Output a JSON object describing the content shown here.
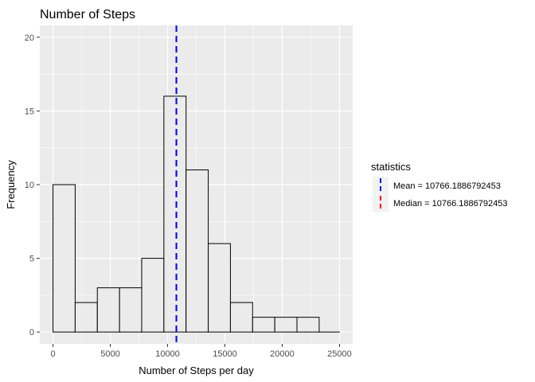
{
  "chart_data": {
    "type": "bar",
    "subtype": "histogram",
    "title": "Number of Steps",
    "xlabel": "Number of Steps per day",
    "ylabel": "Frequency",
    "xlim": [
      -1150,
      26150
    ],
    "ylim": [
      -0.8,
      20.8
    ],
    "x_ticks": [
      0,
      5000,
      10000,
      15000,
      20000,
      25000
    ],
    "x_tick_labels": [
      "0",
      "5000",
      "10000",
      "15000",
      "20000",
      "25000"
    ],
    "y_ticks": [
      0,
      5,
      10,
      15,
      20
    ],
    "y_tick_labels": [
      "0",
      "5",
      "10",
      "15",
      "20"
    ],
    "x_minor_ticks": [
      2500,
      7500,
      12500,
      17500,
      22500
    ],
    "y_minor_ticks": [
      2.5,
      7.5,
      12.5,
      17.5
    ],
    "bins": [
      {
        "x0": 0,
        "x1": 1935.3,
        "count": 10
      },
      {
        "x0": 1935.3,
        "x1": 3870.6,
        "count": 2
      },
      {
        "x0": 3870.6,
        "x1": 5805.9,
        "count": 3
      },
      {
        "x0": 5805.9,
        "x1": 7741.2,
        "count": 3
      },
      {
        "x0": 7741.2,
        "x1": 9676.5,
        "count": 5
      },
      {
        "x0": 9676.5,
        "x1": 11611.8,
        "count": 16
      },
      {
        "x0": 11611.8,
        "x1": 13547.1,
        "count": 11
      },
      {
        "x0": 13547.1,
        "x1": 15482.4,
        "count": 6
      },
      {
        "x0": 15482.4,
        "x1": 17417.6,
        "count": 2
      },
      {
        "x0": 17417.6,
        "x1": 19352.9,
        "count": 1
      },
      {
        "x0": 19352.9,
        "x1": 21288.2,
        "count": 1
      },
      {
        "x0": 21288.2,
        "x1": 23223.5,
        "count": 1
      },
      {
        "x0": 23223.5,
        "x1": 25000,
        "count": 0
      }
    ],
    "vlines": [
      {
        "name": "Median",
        "x": 10766.1886792453,
        "color": "#ff0000",
        "dash": "dashed"
      },
      {
        "name": "Mean",
        "x": 10766.1886792453,
        "color": "#0000ff",
        "dash": "dashed"
      }
    ],
    "legend": {
      "title": "statistics",
      "placement": "right",
      "entries": [
        {
          "label": "Mean =  10766.1886792453",
          "color": "#0000ff"
        },
        {
          "label": "Median =  10766.1886792453",
          "color": "#ff0000"
        }
      ]
    },
    "colors": {
      "panel_background": "#ebebeb",
      "grid": "#ffffff",
      "bar_fill": "#ebebeb",
      "bar_outline": "#000000"
    },
    "grid": true
  }
}
